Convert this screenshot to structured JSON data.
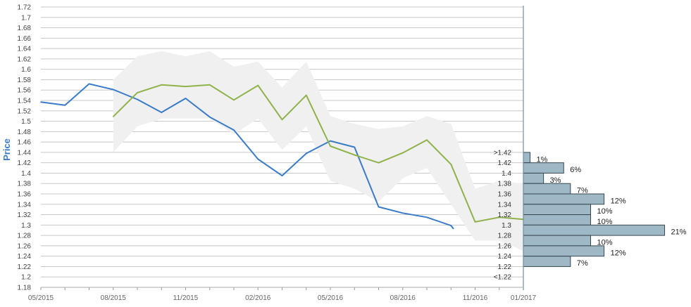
{
  "chart_data": {
    "type": "line",
    "ylabel": "Price",
    "xlabel": "",
    "ylim": [
      1.18,
      1.72
    ],
    "y_ticks": [
      "1.18",
      "1.2",
      "1.22",
      "1.24",
      "1.26",
      "1.28",
      "1.3",
      "1.32",
      "1.34",
      "1.36",
      "1.38",
      "1.4",
      "1.42",
      "1.44",
      "1.46",
      "1.48",
      "1.5",
      "1.52",
      "1.54",
      "1.56",
      "1.58",
      "1.6",
      "1.62",
      "1.64",
      "1.66",
      "1.68",
      "1.7",
      "1.72"
    ],
    "x_ticks": [
      "05/2015",
      "08/2015",
      "11/2015",
      "02/2016",
      "05/2016",
      "08/2016",
      "11/2016",
      "01/2017"
    ],
    "grid": true,
    "series": [
      {
        "color": "#3a7bc8",
        "points": [
          {
            "x": "2015-05",
            "y": 1.537
          },
          {
            "x": "2015-06",
            "y": 1.531
          },
          {
            "x": "2015-07",
            "y": 1.572
          },
          {
            "x": "2015-08",
            "y": 1.561
          },
          {
            "x": "2015-09",
            "y": 1.542
          },
          {
            "x": "2015-10",
            "y": 1.517
          },
          {
            "x": "2015-11",
            "y": 1.544
          },
          {
            "x": "2015-12",
            "y": 1.508
          },
          {
            "x": "2016-01",
            "y": 1.483
          },
          {
            "x": "2016-02",
            "y": 1.427
          },
          {
            "x": "2016-03",
            "y": 1.395
          },
          {
            "x": "2016-04",
            "y": 1.438
          },
          {
            "x": "2016-05",
            "y": 1.462
          },
          {
            "x": "2016-06",
            "y": 1.45
          },
          {
            "x": "2016-07",
            "y": 1.335
          },
          {
            "x": "2016-08",
            "y": 1.323
          },
          {
            "x": "2016-09",
            "y": 1.315
          },
          {
            "x": "2016-10",
            "y": 1.299
          },
          {
            "x": "2016-10-04",
            "y": 1.293
          }
        ]
      },
      {
        "color": "#8fb24a",
        "points": [
          {
            "x": "2015-08",
            "y": 1.509
          },
          {
            "x": "2015-09",
            "y": 1.555
          },
          {
            "x": "2015-10",
            "y": 1.57
          },
          {
            "x": "2015-11",
            "y": 1.567
          },
          {
            "x": "2015-12",
            "y": 1.57
          },
          {
            "x": "2016-01",
            "y": 1.541
          },
          {
            "x": "2016-02",
            "y": 1.569
          },
          {
            "x": "2016-03",
            "y": 1.503
          },
          {
            "x": "2016-04",
            "y": 1.55
          },
          {
            "x": "2016-05",
            "y": 1.452
          },
          {
            "x": "2016-06",
            "y": 1.435
          },
          {
            "x": "2016-07",
            "y": 1.42
          },
          {
            "x": "2016-08",
            "y": 1.439
          },
          {
            "x": "2016-09",
            "y": 1.464
          },
          {
            "x": "2016-10",
            "y": 1.417
          },
          {
            "x": "2016-11",
            "y": 1.306
          },
          {
            "x": "2016-12",
            "y": 1.315
          },
          {
            "x": "2017-01",
            "y": 1.311
          }
        ]
      }
    ],
    "band": {
      "color": "#f0f0f0",
      "x": [
        "2015-08",
        "2015-09",
        "2015-10",
        "2015-11",
        "2015-12",
        "2016-01",
        "2016-02",
        "2016-03",
        "2016-04",
        "2016-05",
        "2016-06",
        "2016-07",
        "2016-08",
        "2016-09",
        "2016-10",
        "2016-11",
        "2016-12",
        "2017-01"
      ],
      "upper": [
        1.58,
        1.625,
        1.635,
        1.625,
        1.635,
        1.605,
        1.615,
        1.565,
        1.615,
        1.51,
        1.495,
        1.485,
        1.49,
        1.51,
        1.495,
        1.37,
        1.385,
        1.38
      ],
      "lower": [
        1.44,
        1.49,
        1.505,
        1.505,
        1.505,
        1.475,
        1.505,
        1.445,
        1.49,
        1.385,
        1.37,
        1.345,
        1.39,
        1.41,
        1.34,
        1.27,
        1.27,
        1.25
      ]
    },
    "histogram": {
      "color": "#9fb8c6",
      "labels": [
        ">1.42",
        "1.42",
        "1.4",
        "1.38",
        "1.36",
        "1.34",
        "1.32",
        "1.3",
        "1.28",
        "1.26",
        "1.24",
        "1.22",
        "<1.22"
      ],
      "bars": [
        {
          "y": 1.42,
          "value": 1,
          "label": "1%"
        },
        {
          "y": 1.4,
          "value": 6,
          "label": "6%"
        },
        {
          "y": 1.38,
          "value": 3,
          "label": "3%"
        },
        {
          "y": 1.36,
          "value": 7,
          "label": "7%"
        },
        {
          "y": 1.34,
          "value": 12,
          "label": "12%"
        },
        {
          "y": 1.32,
          "value": 10,
          "label": "10%"
        },
        {
          "y": 1.3,
          "value": 10,
          "label": "10%"
        },
        {
          "y": 1.28,
          "value": 21,
          "label": "21%"
        },
        {
          "y": 1.26,
          "value": 10,
          "label": "10%"
        },
        {
          "y": 1.24,
          "value": 12,
          "label": "12%"
        },
        {
          "y": 1.22,
          "value": 7,
          "label": "7%"
        }
      ]
    }
  }
}
